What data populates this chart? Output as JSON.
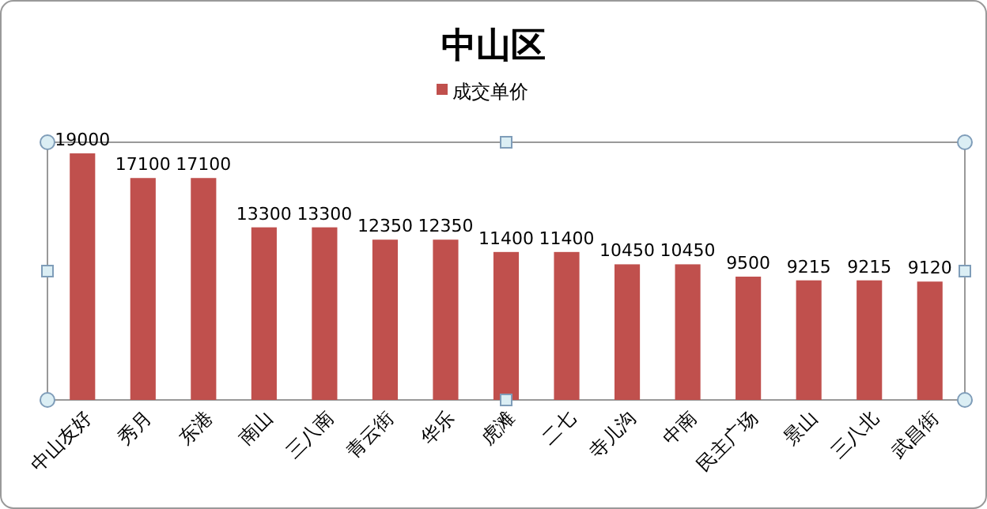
{
  "chart_data": {
    "type": "bar",
    "title": "中山区",
    "categories": [
      "中山友好",
      "秀月",
      "东港",
      "南山",
      "三八南",
      "青云街",
      "华乐",
      "虎滩",
      "二七",
      "寺儿沟",
      "中南",
      "民主广场",
      "景山",
      "三八北",
      "武昌街"
    ],
    "series": [
      {
        "name": "成交单价",
        "color": "#c0504d",
        "values": [
          19000,
          17100,
          17100,
          13300,
          13300,
          12350,
          12350,
          11400,
          11400,
          10450,
          10450,
          9500,
          9215,
          9215,
          9120
        ]
      }
    ],
    "data_labels": true,
    "legend": "top",
    "grid": false
  }
}
